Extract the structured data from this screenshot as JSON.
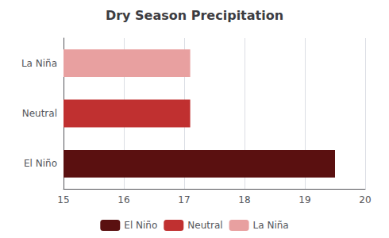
{
  "chart_data": {
    "type": "bar",
    "orientation": "horizontal",
    "title": "Dry Season Precipitation",
    "categories": [
      "El Niño",
      "Neutral",
      "La Niña"
    ],
    "values": [
      19.5,
      17.1,
      17.1
    ],
    "colors": [
      "#5a1010",
      "#c03030",
      "#e8a0a0"
    ],
    "xlim": [
      15,
      20
    ],
    "xticks": [
      15,
      16,
      17,
      18,
      19,
      20
    ],
    "grid": true,
    "legend": "bottom"
  }
}
